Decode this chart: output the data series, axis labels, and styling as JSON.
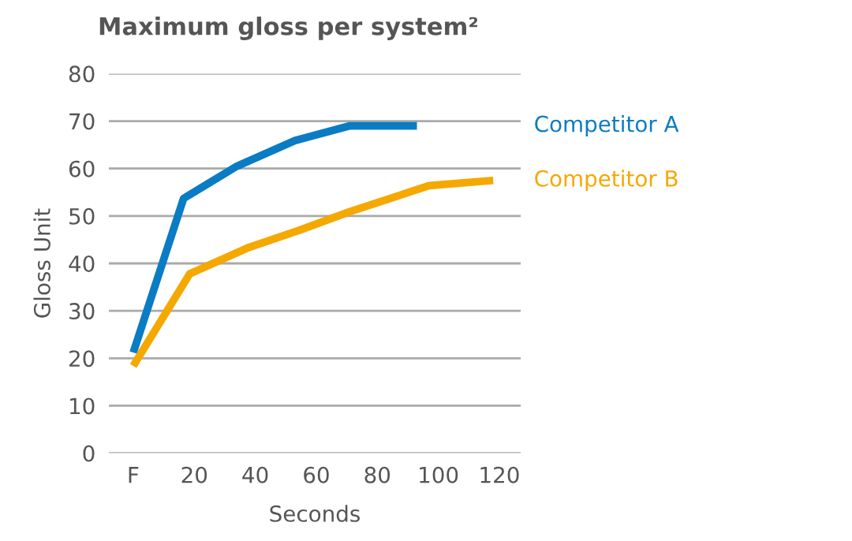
{
  "chart_data": {
    "type": "line",
    "title": "Maximum gloss per system²",
    "xlabel": "Seconds",
    "ylabel": "Gloss Unit",
    "xlim": [
      -8,
      127
    ],
    "xticks": [
      {
        "value": 0,
        "label": "F"
      },
      20,
      40,
      60,
      80,
      100,
      120
    ],
    "ylim": [
      0,
      80
    ],
    "yticks": [
      0,
      10,
      20,
      30,
      40,
      50,
      60,
      70,
      80
    ],
    "grid": "y",
    "legend": false,
    "marker": "none",
    "line_style": "solid",
    "series": [
      {
        "name": "Competitor A",
        "color": "#0a7cc4",
        "x": [
          0,
          16.5,
          34,
          53,
          71,
          93
        ],
        "values": [
          21.2,
          53.7,
          60.5,
          65.9,
          69,
          69
        ]
      },
      {
        "name": "Competitor B",
        "color": "#f5a800",
        "x": [
          0,
          18.5,
          38,
          54.5,
          71,
          97,
          118
        ],
        "values": [
          18.4,
          37.8,
          43.4,
          47,
          50.9,
          56.4,
          57.5
        ]
      }
    ]
  }
}
